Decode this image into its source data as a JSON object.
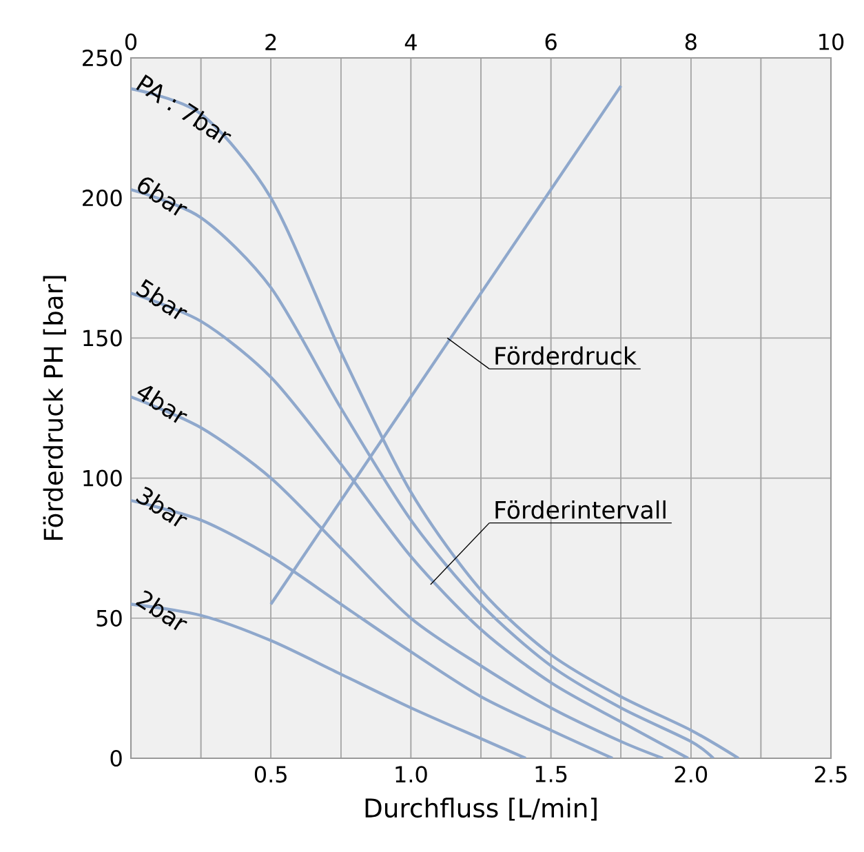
{
  "chart_data": {
    "type": "line",
    "xlabel": "Durchfluss [L/min]",
    "ylabel": "Förderdruck PH [bar]",
    "xlim": [
      0,
      2.5
    ],
    "ylim": [
      0,
      250
    ],
    "xticks": [
      {
        "value": 0.25,
        "label": null
      },
      0.5,
      {
        "value": 0.75,
        "label": null
      },
      {
        "value": 1.0,
        "label": "1.0"
      },
      {
        "value": 1.25,
        "label": null
      },
      1.5,
      {
        "value": 1.75,
        "label": null
      },
      {
        "value": 2.0,
        "label": "2.0"
      },
      {
        "value": 2.25,
        "label": null
      },
      2.5
    ],
    "yticks": [
      0,
      50,
      100,
      150,
      200,
      250
    ],
    "x2lim": [
      0,
      10
    ],
    "x2ticks": [
      0,
      {
        "value": 1,
        "label": null
      },
      2,
      {
        "value": 3,
        "label": null
      },
      4,
      {
        "value": 5,
        "label": null
      },
      6,
      {
        "value": 7,
        "label": null
      },
      8,
      {
        "value": 9,
        "label": null
      },
      10
    ],
    "grid": true,
    "legend": false,
    "marker": "none",
    "line_style": "solid",
    "series": [
      {
        "name": "PA : 7bar",
        "color": "#8fa8cc",
        "x": [
          0,
          0.25,
          0.5,
          0.75,
          1.0,
          1.25,
          1.5,
          1.75,
          2.0,
          2.17
        ],
        "values": [
          239,
          230,
          200,
          145,
          95,
          60,
          37,
          22,
          10,
          0
        ]
      },
      {
        "name": "6bar",
        "color": "#8fa8cc",
        "x": [
          0,
          0.25,
          0.5,
          0.75,
          1.0,
          1.25,
          1.5,
          1.75,
          2.0,
          2.08
        ],
        "values": [
          203,
          193,
          168,
          125,
          85,
          55,
          33,
          18,
          6,
          0
        ]
      },
      {
        "name": "5bar",
        "color": "#8fa8cc",
        "x": [
          0,
          0.25,
          0.5,
          0.75,
          1.0,
          1.25,
          1.5,
          1.75,
          1.99
        ],
        "values": [
          166,
          156,
          136,
          105,
          72,
          46,
          27,
          13,
          0
        ]
      },
      {
        "name": "4bar",
        "color": "#8fa8cc",
        "x": [
          0,
          0.25,
          0.5,
          0.75,
          1.0,
          1.25,
          1.5,
          1.75,
          1.9
        ],
        "values": [
          129,
          118,
          100,
          75,
          50,
          33,
          18,
          6,
          0
        ]
      },
      {
        "name": "3bar",
        "color": "#8fa8cc",
        "x": [
          0,
          0.25,
          0.5,
          0.75,
          1.0,
          1.25,
          1.5,
          1.72
        ],
        "values": [
          92,
          85,
          72,
          55,
          38,
          22,
          10,
          0
        ]
      },
      {
        "name": "2bar",
        "color": "#8fa8cc",
        "x": [
          0,
          0.25,
          0.5,
          0.75,
          1.0,
          1.25,
          1.41
        ],
        "values": [
          55,
          51,
          42,
          30,
          18,
          7,
          0
        ]
      },
      {
        "color": "#8fa8cc",
        "x": [
          0.5,
          1.75
        ],
        "values": [
          55,
          240
        ]
      }
    ],
    "annotations": [
      {
        "text": "Förderdruck",
        "x": 1.13,
        "y": 150
      },
      {
        "text": "Förderintervall",
        "x": 1.07,
        "y": 62
      }
    ]
  }
}
